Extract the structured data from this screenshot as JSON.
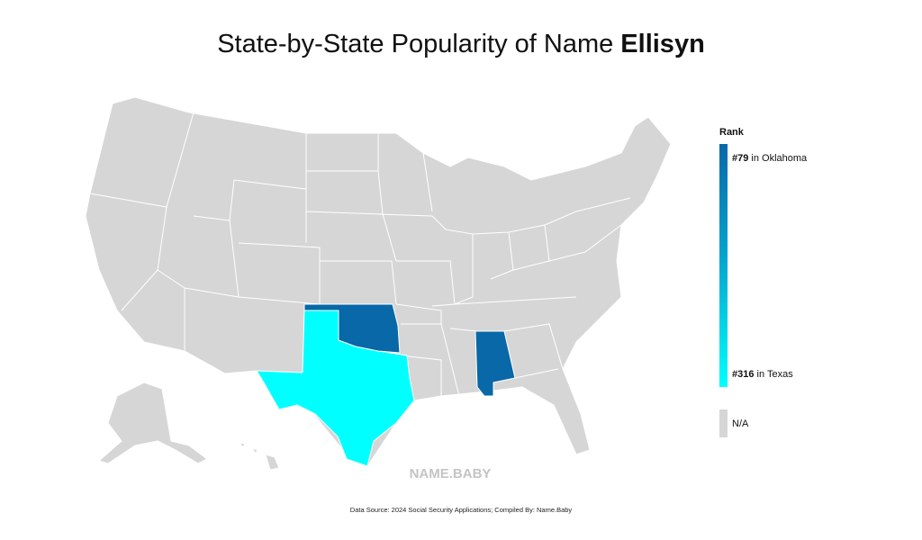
{
  "title": {
    "prefix": "State-by-State Popularity of Name",
    "name": "Ellisyn"
  },
  "legend": {
    "title": "Rank",
    "top": {
      "rank": "#79",
      "state": "in Oklahoma"
    },
    "bottom": {
      "rank": "#316",
      "state": "in Texas"
    },
    "na": "N/A"
  },
  "watermark": "NAME.BABY",
  "source": "Data Source: 2024 Social Security Applications; Compiled By: Name.Baby"
}
